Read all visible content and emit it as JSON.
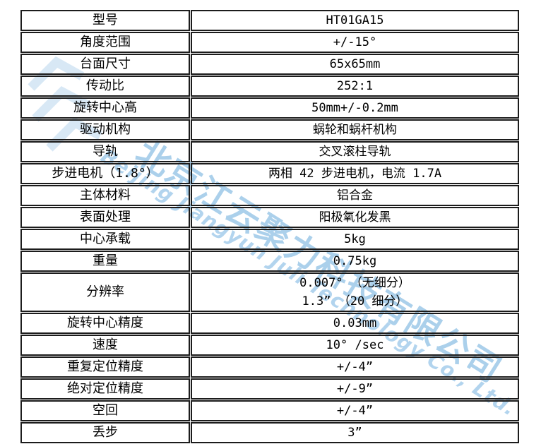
{
  "page": {
    "background_color": "#ffffff",
    "border_color": "#1c1c1c",
    "text_color": "#000000"
  },
  "watermark": {
    "cn_text": "北京江云聚力科技有限公司",
    "en_text": "Beijing Jiangyun Juli Technology Co., Ltd.",
    "cn_color": "#abd0eb",
    "en_color": "#b2d4ee",
    "logo_color": "#d2e5f4"
  },
  "table": {
    "rows": [
      {
        "label": "型号",
        "values": [
          "HT01GA15"
        ]
      },
      {
        "label": "角度范围",
        "values": [
          "+/-15°"
        ]
      },
      {
        "label": "台面尺寸",
        "values": [
          "65x65mm"
        ]
      },
      {
        "label": "传动比",
        "values": [
          "252:1"
        ]
      },
      {
        "label": "旋转中心高",
        "values": [
          "50mm+/-0.2mm"
        ]
      },
      {
        "label": "驱动机构",
        "values": [
          "蜗轮和蜗杆机构"
        ]
      },
      {
        "label": "导轨",
        "values": [
          "交叉滚柱导轨"
        ]
      },
      {
        "label": "步进电机（1.8°）",
        "values": [
          "两相 42 步进电机，电流 1.7A"
        ]
      },
      {
        "label": "主体材料",
        "values": [
          "铝合金"
        ]
      },
      {
        "label": "表面处理",
        "values": [
          "阳极氧化发黑"
        ]
      },
      {
        "label": "中心承载",
        "values": [
          "5kg"
        ]
      },
      {
        "label": "重量",
        "values": [
          "0.75kg"
        ]
      },
      {
        "label": "分辨率",
        "values": [
          "0.007° （无细分）",
          "1.3” （20 细分）"
        ]
      },
      {
        "label": "旋转中心精度",
        "values": [
          "0.03mm"
        ]
      },
      {
        "label": "速度",
        "values": [
          "10° /sec"
        ]
      },
      {
        "label": "重复定位精度",
        "values": [
          "+/-4”"
        ]
      },
      {
        "label": "绝对定位精度",
        "values": [
          "+/-9”"
        ]
      },
      {
        "label": "空回",
        "values": [
          "+/-4”"
        ]
      },
      {
        "label": "丢步",
        "values": [
          "3”"
        ]
      }
    ]
  }
}
